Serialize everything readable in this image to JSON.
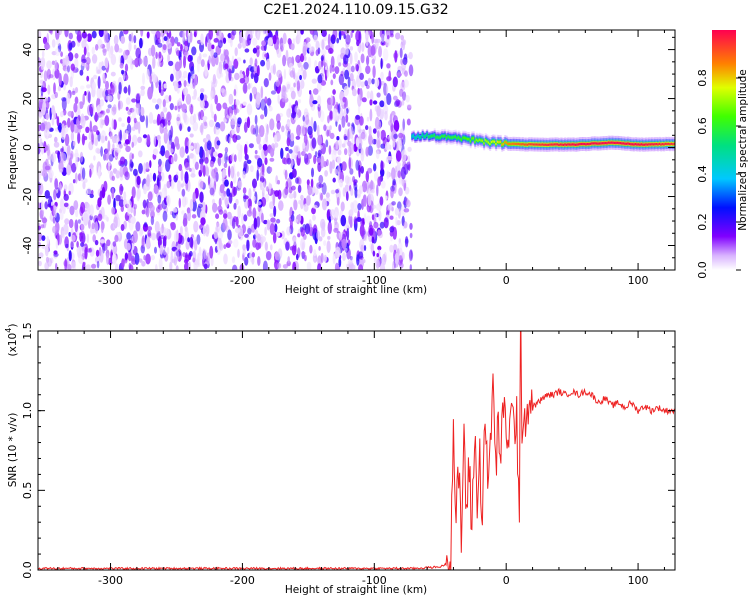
{
  "chart_data": [
    {
      "type": "heatmap",
      "title": "C2E1.2024.110.09.15.G32",
      "xlabel": "Height of straight line (km)",
      "ylabel": "Frequency (Hz)",
      "xlim": [
        -355,
        128
      ],
      "ylim": [
        -50,
        48
      ],
      "x_ticks": [
        "-300",
        "-200",
        "-100",
        "0",
        "100"
      ],
      "y_ticks": [
        "-40",
        "-20",
        "0",
        "20",
        "40"
      ],
      "noise_region": {
        "x_range": [
          -355,
          -72
        ],
        "y_range": [
          -50,
          48
        ],
        "amplitude_range": [
          0.02,
          0.22
        ]
      },
      "signal_track": [
        {
          "x": -72,
          "y": 4.5,
          "amplitude": 0.45
        },
        {
          "x": -60,
          "y": 5.0,
          "amplitude": 0.55
        },
        {
          "x": -50,
          "y": 4.5,
          "amplitude": 0.6
        },
        {
          "x": -40,
          "y": 4.0,
          "amplitude": 0.6
        },
        {
          "x": -30,
          "y": 3.5,
          "amplitude": 0.65
        },
        {
          "x": -20,
          "y": 2.5,
          "amplitude": 0.7
        },
        {
          "x": -10,
          "y": 2.0,
          "amplitude": 0.75
        },
        {
          "x": 0,
          "y": 1.5,
          "amplitude": 0.85
        },
        {
          "x": 20,
          "y": 1.2,
          "amplitude": 0.95
        },
        {
          "x": 50,
          "y": 1.2,
          "amplitude": 1.0
        },
        {
          "x": 80,
          "y": 2.0,
          "amplitude": 1.0
        },
        {
          "x": 100,
          "y": 1.2,
          "amplitude": 1.0
        },
        {
          "x": 128,
          "y": 1.5,
          "amplitude": 0.95
        }
      ],
      "colorbar": {
        "label": "Normalized spectral amplitude",
        "range": [
          0.0,
          1.0
        ],
        "ticks": [
          "0.0",
          "0.2",
          "0.4",
          "0.6",
          "0.8"
        ]
      },
      "grid": false,
      "colors": {
        "noise": "#7a14ee",
        "low": "#ffffff",
        "mid": "#00e060",
        "high": "#ff1060"
      }
    },
    {
      "type": "line",
      "xlabel": "Height of straight line (km)",
      "ylabel": "SNR (10 * v/v)",
      "y_multiplier": "(x10",
      "y_multiplier_exp": "4",
      "y_multiplier_close": ")",
      "xlim": [
        -355,
        128
      ],
      "ylim": [
        0,
        1.5
      ],
      "x_ticks": [
        "-300",
        "-200",
        "-100",
        "0",
        "100"
      ],
      "y_ticks": [
        "0.0",
        "0.5",
        "1.0",
        "1.5"
      ],
      "series": [
        {
          "color": "#ee2222",
          "x": [
            -355,
            -300,
            -250,
            -200,
            -150,
            -100,
            -70,
            -50,
            -45,
            -42,
            -40,
            -38,
            -36,
            -34,
            -32,
            -30,
            -28,
            -26,
            -24,
            -22,
            -20,
            -18,
            -16,
            -14,
            -12,
            -10,
            -8,
            -6,
            -4,
            -2,
            0,
            2,
            4,
            6,
            8,
            10,
            11,
            12,
            14,
            16,
            18,
            20,
            24,
            28,
            32,
            36,
            40,
            45,
            50,
            55,
            60,
            65,
            70,
            75,
            80,
            85,
            90,
            95,
            100,
            105,
            110,
            115,
            120,
            128
          ],
          "y": [
            0.01,
            0.01,
            0.01,
            0.01,
            0.01,
            0.01,
            0.01,
            0.02,
            0.04,
            0.15,
            0.9,
            0.3,
            0.6,
            0.2,
            0.85,
            0.35,
            0.65,
            0.25,
            0.9,
            0.4,
            0.7,
            0.35,
            1.05,
            0.45,
            0.8,
            1.2,
            0.6,
            0.95,
            0.7,
            1.0,
            0.9,
            0.85,
            0.95,
            0.9,
            1.0,
            0.25,
            1.55,
            0.95,
            0.98,
            1.0,
            1.05,
            1.02,
            1.05,
            1.08,
            1.1,
            1.1,
            1.12,
            1.1,
            1.12,
            1.1,
            1.12,
            1.1,
            1.05,
            1.08,
            1.03,
            1.05,
            1.02,
            1.05,
            1.0,
            1.03,
            1.0,
            1.02,
            1.0,
            1.0
          ]
        }
      ],
      "grid": false
    }
  ]
}
